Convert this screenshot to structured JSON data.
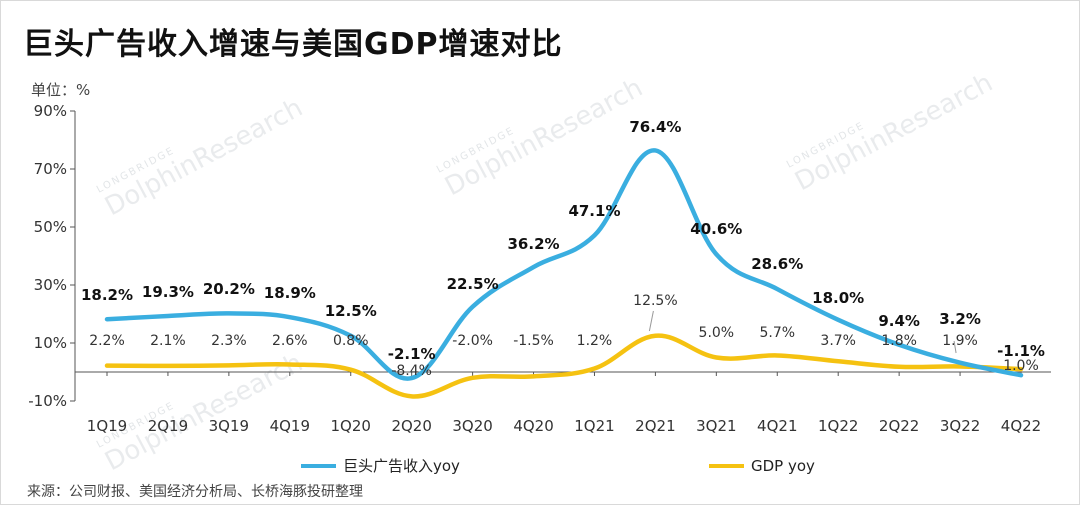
{
  "title": "巨头广告收入增速与美国GDP增速对比",
  "unit_label": "单位：%",
  "source": "来源：公司财报、美国经济分析局、长桥海豚投研整理",
  "watermark": {
    "brand": "DolphinResearch",
    "small": "LONGBRIDGE"
  },
  "colors": {
    "ad": "#3aaee0",
    "gdp": "#f5c211",
    "axis": "#555555"
  },
  "chart_data": {
    "type": "line",
    "categories": [
      "1Q19",
      "2Q19",
      "3Q19",
      "4Q19",
      "1Q20",
      "2Q20",
      "3Q20",
      "4Q20",
      "1Q21",
      "2Q21",
      "3Q21",
      "4Q21",
      "1Q22",
      "2Q22",
      "3Q22",
      "4Q22"
    ],
    "ylim": [
      -10,
      90
    ],
    "yticks": [
      -10,
      10,
      30,
      50,
      70,
      90
    ],
    "ytick_labels": [
      "-10%",
      "10%",
      "30%",
      "50%",
      "70%",
      "90%"
    ],
    "grid": false,
    "legend": "bottom",
    "series": [
      {
        "name": "巨头广告收入yoy",
        "values": [
          18.2,
          19.3,
          20.2,
          18.9,
          12.5,
          -2.1,
          22.5,
          36.2,
          47.1,
          76.4,
          40.6,
          28.6,
          18.0,
          9.4,
          3.2,
          -1.1
        ],
        "labels": [
          "18.2%",
          "19.3%",
          "20.2%",
          "18.9%",
          "12.5%",
          "-2.1%",
          "22.5%",
          "36.2%",
          "47.1%",
          "76.4%",
          "40.6%",
          "28.6%",
          "18.0%",
          "9.4%",
          "3.2%",
          "-1.1%"
        ]
      },
      {
        "name": "GDP yoy",
        "values": [
          2.2,
          2.1,
          2.3,
          2.6,
          0.8,
          -8.4,
          -2.0,
          -1.5,
          1.2,
          12.5,
          5.0,
          5.7,
          3.7,
          1.8,
          1.9,
          1.0
        ],
        "labels": [
          "2.2%",
          "2.1%",
          "2.3%",
          "2.6%",
          "0.8%",
          "-8.4%",
          "-2.0%",
          "-1.5%",
          "1.2%",
          "12.5%",
          "5.0%",
          "5.7%",
          "3.7%",
          "1.8%",
          "1.9%",
          "1.0%"
        ]
      }
    ]
  }
}
